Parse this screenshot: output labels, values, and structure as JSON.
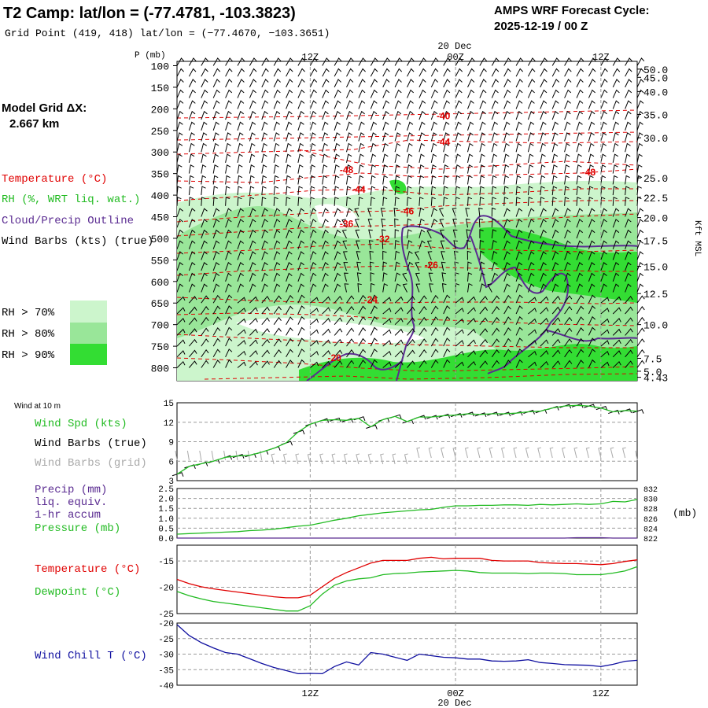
{
  "header": {
    "title": "T2 Camp:  lat/lon = (-77.4781, -103.3823)",
    "subtitle": "Grid Point (419, 418) lat/lon = (−77.4670, −103.3651)",
    "cycle_title": "AMPS WRF Forecast Cycle:",
    "cycle_value": "2025-12-19 / 00  Z"
  },
  "time_axis": {
    "date_label": "20 Dec",
    "ticks": [
      "12Z",
      "00Z",
      "12Z"
    ],
    "tick_hours": [
      12,
      24,
      36
    ],
    "hours_range": [
      1,
      39
    ]
  },
  "legend": {
    "model_grid_label": "Model Grid ΔX:",
    "model_grid_value": "2.667 km",
    "temperature": "Temperature (°C)",
    "rh": "RH (%, WRT liq. wat.)",
    "cloud": "Cloud/Precip Outline",
    "wind": "Wind Barbs (kts) (true)",
    "rh_levels": [
      "RH > 70%",
      "RH > 80%",
      "RH > 90%"
    ]
  },
  "colors": {
    "temperature": "#e00000",
    "rh": "#22bb22",
    "cloud": "#5a2b91",
    "wind_true": "#000000",
    "wind_grid": "#aaaaaa",
    "rh70": "#ccf5cc",
    "rh80": "#99e699",
    "rh90": "#33dd33",
    "pressure": "#22bb22",
    "windchill": "#1010a0"
  },
  "chart_data": [
    {
      "type": "heatmap",
      "name": "time-height cross section",
      "y_axis_label": "P (mb)",
      "pressure_levels": [
        100,
        150,
        200,
        250,
        300,
        350,
        400,
        450,
        500,
        550,
        600,
        650,
        700,
        750,
        800
      ],
      "ylim_mb": [
        90,
        830
      ],
      "height_axis_label": "Kft MSL",
      "height_labels": [
        "50.0",
        "45.0",
        "40.0",
        "35.0",
        "30.0",
        "25.0",
        "22.5",
        "20.0",
        "17.5",
        "15.0",
        "12.5",
        "10.0",
        "7.5",
        "5.0",
        "4.43"
      ],
      "height_label_mb": [
        108,
        127,
        160,
        213,
        267,
        360,
        405,
        452,
        505,
        565,
        628,
        700,
        778,
        808,
        822
      ],
      "temperature_labels": [
        {
          "text": "-40",
          "hour": 23,
          "mb": 215
        },
        {
          "text": "-44",
          "hour": 23,
          "mb": 275
        },
        {
          "text": "-48",
          "hour": 15,
          "mb": 340
        },
        {
          "text": "-48",
          "hour": 35,
          "mb": 345
        },
        {
          "text": "-44",
          "hour": 16,
          "mb": 385
        },
        {
          "text": "-46",
          "hour": 20,
          "mb": 435
        },
        {
          "text": "-36",
          "hour": 15,
          "mb": 465
        },
        {
          "text": "-32",
          "hour": 18,
          "mb": 500
        },
        {
          "text": "-26",
          "hour": 22,
          "mb": 560
        },
        {
          "text": "-24",
          "hour": 17,
          "mb": 640
        },
        {
          "text": "-20",
          "hour": 14,
          "mb": 775
        }
      ]
    },
    {
      "type": "line",
      "name": "wind at 10 m",
      "panel_label": "Wind at 10 m",
      "series_labels": [
        "Wind Spd (kts)",
        "Wind Barbs (true)",
        "Wind Barbs (grid)"
      ],
      "ylim": [
        3,
        15
      ],
      "yticks": [
        3,
        6,
        9,
        12,
        15
      ],
      "x": [
        1,
        2,
        3,
        4,
        5,
        6,
        7,
        8,
        9,
        10,
        11,
        12,
        13,
        14,
        15,
        16,
        17,
        18,
        19,
        20,
        21,
        22,
        23,
        24,
        25,
        26,
        27,
        28,
        29,
        30,
        31,
        32,
        33,
        34,
        35,
        36,
        37,
        38,
        39
      ],
      "wind_speed": [
        4.0,
        5.2,
        5.6,
        6.0,
        6.6,
        6.8,
        6.9,
        7.4,
        8.0,
        8.8,
        10.5,
        11.7,
        12.3,
        12.4,
        12.3,
        12.6,
        11.3,
        12.4,
        12.9,
        12.1,
        12.8,
        12.8,
        13.0,
        13.1,
        13.3,
        13.2,
        13.3,
        13.3,
        13.4,
        13.6,
        13.7,
        14.2,
        14.5,
        14.6,
        14.5,
        14.2,
        13.6,
        13.8,
        13.7
      ]
    },
    {
      "type": "line",
      "name": "precip and pressure",
      "series_labels": [
        "Precip (mm)",
        "liq. equiv.",
        "1-hr accum",
        "Pressure (mb)"
      ],
      "precip_ylim": [
        0,
        2.5
      ],
      "precip_yticks": [
        "0.0",
        "0.5",
        "1.0",
        "1.5",
        "2.0",
        "2.5"
      ],
      "pressure_ylim": [
        822,
        832
      ],
      "pressure_yticks": [
        "822",
        "824",
        "826",
        "828",
        "830",
        "832"
      ],
      "right_unit": "(mb)",
      "x": [
        1,
        2,
        3,
        4,
        5,
        6,
        7,
        8,
        9,
        10,
        11,
        12,
        13,
        14,
        15,
        16,
        17,
        18,
        19,
        20,
        21,
        22,
        23,
        24,
        25,
        26,
        27,
        28,
        29,
        30,
        31,
        32,
        33,
        34,
        35,
        36,
        37,
        38,
        39
      ],
      "pressure": [
        822.8,
        822.9,
        823.0,
        823.1,
        823.2,
        823.3,
        823.5,
        823.6,
        823.8,
        824.1,
        824.4,
        824.6,
        825.1,
        825.6,
        826.0,
        826.5,
        826.8,
        827.1,
        827.3,
        827.5,
        827.7,
        827.8,
        828.2,
        828.5,
        828.5,
        828.6,
        828.6,
        828.7,
        828.7,
        828.6,
        828.8,
        828.7,
        828.8,
        828.9,
        828.8,
        828.9,
        829.4,
        829.3,
        829.8
      ],
      "precip": [
        0,
        0,
        0,
        0,
        0,
        0,
        0,
        0,
        0,
        0,
        0,
        0,
        0,
        0,
        0,
        0,
        0,
        0,
        0,
        0,
        0,
        0,
        0,
        0,
        0,
        0,
        0,
        0,
        0,
        0,
        0,
        0,
        0,
        0.02,
        0.02,
        0.02,
        0,
        0,
        0
      ]
    },
    {
      "type": "line",
      "name": "temperature and dewpoint",
      "series_labels": [
        "Temperature (°C)",
        "Dewpoint (°C)"
      ],
      "ylim": [
        -25,
        -12
      ],
      "yticks": [
        -25,
        -20,
        -15
      ],
      "x": [
        1,
        2,
        3,
        4,
        5,
        6,
        7,
        8,
        9,
        10,
        11,
        12,
        13,
        14,
        15,
        16,
        17,
        18,
        19,
        20,
        21,
        22,
        23,
        24,
        25,
        26,
        27,
        28,
        29,
        30,
        31,
        32,
        33,
        34,
        35,
        36,
        37,
        38,
        39
      ],
      "temperature": [
        -18.5,
        -19.3,
        -19.9,
        -20.3,
        -20.6,
        -20.9,
        -21.2,
        -21.5,
        -21.8,
        -22.0,
        -22.0,
        -21.5,
        -19.9,
        -18.3,
        -17.2,
        -16.3,
        -15.4,
        -14.9,
        -14.9,
        -14.9,
        -14.5,
        -14.3,
        -14.6,
        -14.5,
        -14.5,
        -14.5,
        -14.9,
        -15.0,
        -15.0,
        -15.0,
        -15.3,
        -15.4,
        -15.5,
        -15.5,
        -15.6,
        -15.7,
        -15.5,
        -15.1,
        -14.8
      ],
      "dewpoint": [
        -20.8,
        -21.6,
        -22.2,
        -22.7,
        -23.0,
        -23.3,
        -23.6,
        -23.9,
        -24.2,
        -24.5,
        -24.5,
        -23.5,
        -21.3,
        -19.6,
        -18.8,
        -18.4,
        -18.2,
        -17.6,
        -17.4,
        -17.3,
        -17.1,
        -17.0,
        -16.9,
        -16.8,
        -16.9,
        -17.2,
        -17.3,
        -17.3,
        -17.3,
        -17.4,
        -17.3,
        -17.3,
        -17.4,
        -17.6,
        -17.6,
        -17.6,
        -17.3,
        -16.9,
        -16.1
      ]
    },
    {
      "type": "line",
      "name": "wind chill",
      "series_labels": [
        "Wind Chill T (°C)"
      ],
      "ylim": [
        -40,
        -20
      ],
      "yticks": [
        -40,
        -35,
        -30,
        -25,
        -20
      ],
      "x": [
        1,
        2,
        3,
        4,
        5,
        6,
        7,
        8,
        9,
        10,
        11,
        12,
        13,
        14,
        15,
        16,
        17,
        18,
        19,
        20,
        21,
        22,
        23,
        24,
        25,
        26,
        27,
        28,
        29,
        30,
        31,
        32,
        33,
        34,
        35,
        36,
        37,
        38,
        39
      ],
      "windchill": [
        -20.5,
        -24.0,
        -26.3,
        -28.0,
        -29.5,
        -30.0,
        -31.5,
        -33.0,
        -34.3,
        -35.3,
        -36.3,
        -36.2,
        -36.3,
        -34.0,
        -32.5,
        -33.5,
        -29.5,
        -30.0,
        -31.0,
        -32.0,
        -30.0,
        -30.5,
        -31.0,
        -31.2,
        -31.6,
        -31.6,
        -32.2,
        -32.3,
        -32.2,
        -31.8,
        -32.7,
        -33.0,
        -33.4,
        -33.5,
        -33.6,
        -34.0,
        -33.3,
        -32.3,
        -32.0
      ]
    }
  ]
}
